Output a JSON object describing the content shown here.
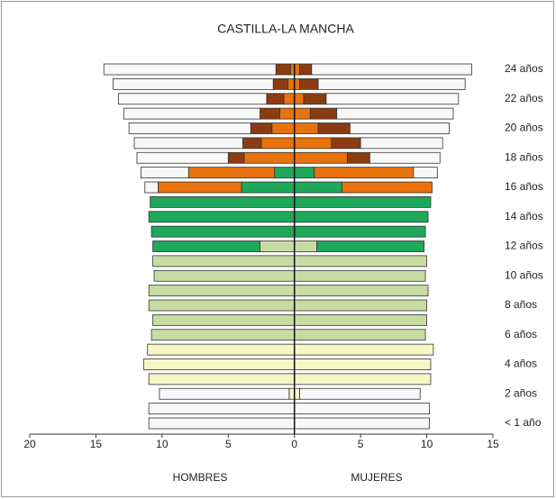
{
  "chart_data": {
    "type": "pyramid",
    "title": "CASTILLA-LA MANCHA",
    "left_label": "HOMBRES",
    "right_label": "MUJERES",
    "categories": [
      "< 1 año",
      null,
      "2 años",
      null,
      "4 años",
      null,
      "6 años",
      null,
      "8 años",
      null,
      "10 años",
      null,
      "12 años",
      null,
      "14 años",
      null,
      "16 años",
      null,
      "18 años",
      null,
      "20 años",
      null,
      "22 años",
      null,
      "24 años"
    ],
    "xlim": [
      -20,
      15
    ],
    "xticks": [
      {
        "value": -20,
        "label": "20"
      },
      {
        "value": -15,
        "label": "15"
      },
      {
        "value": -10,
        "label": "10"
      },
      {
        "value": -5,
        "label": "5"
      },
      0,
      5,
      10,
      15
    ],
    "series": [
      {
        "color": "#f6f6c6",
        "hombres": [
          0,
          0,
          0.4,
          11.0,
          11.4,
          11.1,
          0,
          0,
          0,
          0,
          0,
          0,
          0,
          0,
          0,
          0,
          0,
          0,
          0,
          0,
          0,
          0,
          0,
          0,
          0
        ],
        "mujeres": [
          0,
          0,
          0.4,
          10.3,
          10.3,
          10.5,
          0,
          0,
          0,
          0,
          0,
          0,
          0,
          0,
          0,
          0,
          0,
          0,
          0,
          0,
          0,
          0,
          0,
          0,
          0
        ]
      },
      {
        "color": "#c6dca2",
        "hombres": [
          0,
          0,
          0,
          0,
          0,
          0,
          10.8,
          10.7,
          11.0,
          11.0,
          10.6,
          10.7,
          2.6,
          0,
          0,
          0,
          0,
          0,
          0,
          0,
          0,
          0,
          0,
          0,
          0
        ],
        "mujeres": [
          0,
          0,
          0,
          0,
          0,
          0,
          9.9,
          10.0,
          10.0,
          10.1,
          9.9,
          10.0,
          1.7,
          0,
          0,
          0,
          0,
          0,
          0,
          0,
          0,
          0,
          0,
          0,
          0
        ]
      },
      {
        "color": "#1fa85a",
        "hombres": [
          0,
          0,
          0,
          0,
          0,
          0,
          0,
          0,
          0,
          0,
          0,
          0,
          8.1,
          10.8,
          11.0,
          10.9,
          4.0,
          1.5,
          0,
          0,
          0,
          0,
          0,
          0,
          0
        ],
        "mujeres": [
          0,
          0,
          0,
          0,
          0,
          0,
          0,
          0,
          0,
          0,
          0,
          0,
          8.1,
          9.9,
          10.1,
          10.3,
          3.6,
          1.5,
          0,
          0,
          0,
          0,
          0,
          0,
          0
        ]
      },
      {
        "color": "#e8720c",
        "hombres": [
          0,
          0,
          0,
          0,
          0,
          0,
          0,
          0,
          0,
          0,
          0,
          0,
          0,
          0,
          0,
          0,
          6.3,
          6.5,
          3.8,
          2.5,
          1.7,
          1.1,
          0.8,
          0.5,
          0.3
        ],
        "mujeres": [
          0,
          0,
          0,
          0,
          0,
          0,
          0,
          0,
          0,
          0,
          0,
          0,
          0,
          0,
          0,
          0,
          6.8,
          7.5,
          4.0,
          2.8,
          1.8,
          1.2,
          0.7,
          0.4,
          0.4
        ]
      },
      {
        "color": "#8b3c12",
        "hombres": [
          0,
          0,
          0,
          0,
          0,
          0,
          0,
          0,
          0,
          0,
          0,
          0,
          0,
          0,
          0,
          0,
          0,
          0,
          1.2,
          1.4,
          1.6,
          1.5,
          1.3,
          1.1,
          1.1
        ],
        "mujeres": [
          0,
          0,
          0,
          0,
          0,
          0,
          0,
          0,
          0,
          0,
          0,
          0,
          0,
          0,
          0,
          0,
          0,
          0,
          1.7,
          2.2,
          2.4,
          2.0,
          1.7,
          1.4,
          0.9
        ]
      },
      {
        "color": "#f8f8f8",
        "hombres": [
          11.0,
          11.0,
          9.8,
          0,
          0,
          0,
          0,
          0,
          0,
          0,
          0,
          0,
          0,
          0,
          0,
          0,
          1.0,
          3.6,
          6.9,
          8.2,
          9.2,
          10.3,
          11.2,
          12.1,
          13.0
        ],
        "mujeres": [
          10.2,
          10.2,
          9.1,
          0,
          0,
          0,
          0,
          0,
          0,
          0,
          0,
          0,
          0,
          0,
          0,
          0,
          0,
          1.8,
          5.3,
          6.2,
          7.5,
          8.8,
          10.0,
          11.1,
          12.1
        ]
      }
    ]
  }
}
